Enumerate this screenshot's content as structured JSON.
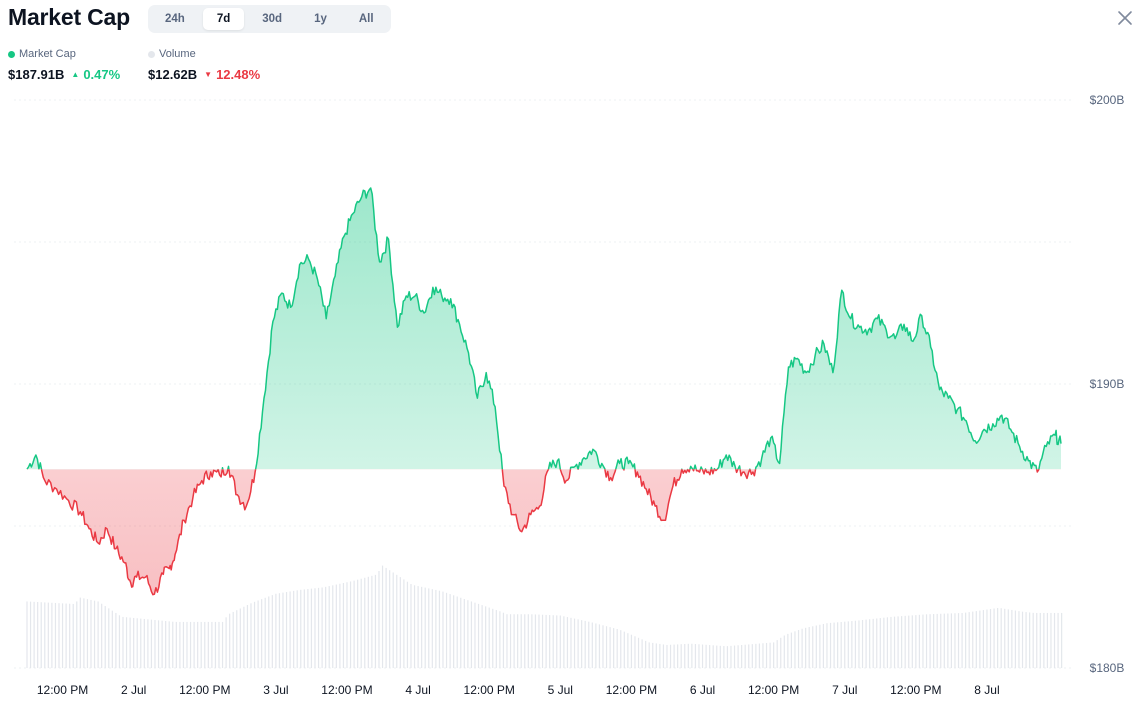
{
  "header": {
    "title": "Market Cap",
    "ranges": [
      "24h",
      "7d",
      "30d",
      "1y",
      "All"
    ],
    "active_range": "7d"
  },
  "legend": {
    "market_cap": {
      "label": "Market Cap",
      "value": "$187.91B",
      "change": "0.47%",
      "direction": "up"
    },
    "volume": {
      "label": "Volume",
      "value": "$12.62B",
      "change": "12.48%",
      "direction": "down"
    }
  },
  "colors": {
    "up": "#16c784",
    "down": "#ea3943",
    "volume": "#e4e7ec",
    "grid": "#eef0f3",
    "axis_text": "#58667e"
  },
  "chart_data": {
    "type": "area",
    "title": "Market Cap",
    "baseline": 187.0,
    "ylim": [
      180,
      200
    ],
    "yticks": [
      180,
      190,
      200
    ],
    "ytick_labels": [
      "$180B",
      "$190B",
      "$200B"
    ],
    "xlim_hours": [
      0,
      175
    ],
    "xtick_labels": [
      "12:00 PM",
      "2 Jul",
      "12:00 PM",
      "3 Jul",
      "12:00 PM",
      "4 Jul",
      "12:00 PM",
      "5 Jul",
      "12:00 PM",
      "6 Jul",
      "12:00 PM",
      "7 Jul",
      "12:00 PM",
      "8 Jul"
    ],
    "series": [
      {
        "name": "Market Cap",
        "unit": "B USD",
        "x": [
          0,
          1.5,
          3,
          5,
          7,
          9,
          10.5,
          12,
          13.5,
          15,
          16.5,
          17.5,
          18.5,
          20,
          21.5,
          23,
          24,
          25,
          26.5,
          28,
          29.5,
          31,
          32.5,
          34,
          35.5,
          37,
          38.5,
          40,
          41.5,
          43,
          44.5,
          46,
          47.5,
          49,
          50.5,
          52,
          53.5,
          55,
          56.5,
          58,
          59.5,
          61,
          62.5,
          64,
          65.5,
          67,
          68.5,
          70,
          71.5,
          73,
          74.5,
          76,
          77.5,
          79,
          80.5,
          82,
          83.5,
          85,
          86.5,
          88,
          89.5,
          91,
          92.5,
          94,
          95.5,
          97,
          98.5,
          100,
          101.5,
          103,
          104.5,
          106,
          107.5,
          109,
          110.5,
          112,
          113.5,
          115,
          116.5,
          118,
          119.5,
          121,
          122.5,
          124,
          125.5,
          127,
          128.5,
          130,
          131.5,
          133,
          134.5,
          136,
          137.5,
          139,
          140.5,
          142,
          143.5,
          145,
          146.5,
          148,
          149.5,
          151,
          152.5,
          154,
          155.5,
          157,
          158.5,
          160,
          161.5,
          163,
          164.5,
          166,
          167.5,
          169,
          170.5,
          172,
          173.5,
          174.5
        ],
        "values": [
          187.0,
          187.5,
          186.6,
          186.3,
          185.9,
          185.5,
          184.9,
          184.4,
          184.9,
          184.2,
          183.7,
          183.0,
          183.2,
          183.2,
          182.6,
          183.3,
          183.5,
          184.0,
          185.2,
          186.0,
          186.6,
          186.9,
          186.8,
          187.1,
          186.1,
          185.7,
          186.9,
          189.5,
          192.2,
          193.2,
          192.7,
          194.2,
          194.4,
          193.7,
          192.3,
          193.8,
          195.2,
          196.0,
          196.6,
          196.9,
          194.3,
          195.1,
          192.0,
          193.1,
          193.1,
          192.5,
          193.4,
          193.1,
          193.0,
          192.1,
          191.1,
          189.5,
          190.4,
          189.2,
          186.4,
          185.4,
          184.8,
          185.4,
          185.7,
          187.0,
          187.3,
          186.6,
          187.1,
          187.4,
          187.7,
          187.2,
          186.7,
          187.2,
          187.2,
          186.9,
          186.3,
          185.7,
          185.2,
          186.4,
          187.0,
          187.1,
          186.9,
          186.9,
          187.0,
          187.5,
          187.1,
          186.9,
          186.9,
          187.4,
          188.1,
          187.2,
          190.6,
          190.9,
          190.4,
          191.0,
          191.4,
          190.4,
          193.3,
          192.3,
          192.0,
          191.9,
          192.3,
          191.9,
          191.6,
          192.1,
          191.5,
          192.4,
          191.3,
          189.8,
          189.5,
          189.1,
          188.7,
          188.0,
          188.4,
          188.6,
          188.9,
          188.4,
          187.8,
          187.3,
          186.9,
          187.8,
          188.2,
          187.9
        ]
      },
      {
        "name": "Volume",
        "unit": "relative",
        "x": [
          0,
          8,
          9,
          12,
          16,
          25,
          33,
          34,
          38,
          42,
          46,
          50,
          55,
          59,
          60,
          62,
          65,
          70,
          75,
          80,
          81,
          85,
          90,
          95,
          100,
          105,
          108,
          112,
          118,
          126,
          128,
          131,
          135,
          140,
          146,
          152,
          158,
          164,
          168,
          170,
          175
        ],
        "values": [
          0.52,
          0.5,
          0.55,
          0.52,
          0.4,
          0.36,
          0.36,
          0.42,
          0.51,
          0.58,
          0.61,
          0.63,
          0.68,
          0.73,
          0.8,
          0.74,
          0.65,
          0.6,
          0.52,
          0.44,
          0.42,
          0.42,
          0.41,
          0.36,
          0.3,
          0.2,
          0.18,
          0.19,
          0.17,
          0.2,
          0.26,
          0.31,
          0.35,
          0.37,
          0.4,
          0.42,
          0.43,
          0.47,
          0.44,
          0.43,
          0.43
        ]
      }
    ]
  }
}
